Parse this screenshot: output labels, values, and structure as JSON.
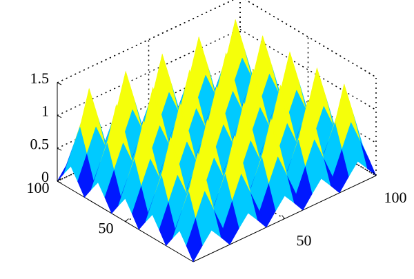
{
  "chart_data": {
    "type": "surface",
    "x": [
      0,
      5,
      10,
      15,
      20,
      25,
      30,
      35,
      40,
      45,
      50,
      55,
      60,
      65,
      70,
      75,
      80,
      85,
      90,
      95,
      100
    ],
    "y": [
      0,
      5,
      10,
      15,
      20,
      25,
      30,
      35,
      40,
      45,
      50,
      55,
      60,
      65,
      70,
      75,
      80,
      85,
      90,
      95,
      100
    ],
    "z": [
      [
        0,
        0.18,
        0.35,
        0.18,
        0,
        0.18,
        0.35,
        0.18,
        0,
        0.18,
        0.35,
        0.18,
        0,
        0.18,
        0.35,
        0.18,
        0,
        0.18,
        0.35,
        0.18,
        0
      ],
      [
        0.18,
        0.53,
        0.88,
        0.53,
        0.18,
        0.53,
        0.88,
        0.53,
        0.18,
        0.53,
        0.88,
        0.53,
        0.18,
        0.53,
        0.88,
        0.53,
        0.18,
        0.53,
        0.88,
        0.53,
        0.18
      ],
      [
        0.35,
        0.88,
        1.4,
        0.88,
        0.35,
        0.88,
        1.4,
        0.88,
        0.35,
        0.88,
        1.4,
        0.88,
        0.35,
        0.88,
        1.4,
        0.88,
        0.35,
        0.88,
        1.4,
        0.88,
        0.35
      ],
      [
        0.18,
        0.53,
        0.88,
        0.53,
        0.18,
        0.53,
        0.88,
        0.53,
        0.18,
        0.53,
        0.88,
        0.53,
        0.18,
        0.53,
        0.88,
        0.53,
        0.18,
        0.53,
        0.88,
        0.53,
        0.18
      ],
      [
        0,
        0.18,
        0.35,
        0.18,
        0,
        0.18,
        0.35,
        0.18,
        0,
        0.18,
        0.35,
        0.18,
        0,
        0.18,
        0.35,
        0.18,
        0,
        0.18,
        0.35,
        0.18,
        0
      ],
      [
        0.18,
        0.53,
        0.88,
        0.53,
        0.18,
        0.53,
        0.88,
        0.53,
        0.18,
        0.53,
        0.88,
        0.53,
        0.18,
        0.53,
        0.88,
        0.53,
        0.18,
        0.53,
        0.88,
        0.53,
        0.18
      ],
      [
        0.35,
        0.88,
        1.4,
        0.88,
        0.35,
        0.88,
        1.4,
        0.88,
        0.35,
        0.88,
        1.4,
        0.88,
        0.35,
        0.88,
        1.4,
        0.88,
        0.35,
        0.88,
        1.4,
        0.88,
        0.35
      ],
      [
        0.18,
        0.53,
        0.88,
        0.53,
        0.18,
        0.53,
        0.88,
        0.53,
        0.18,
        0.53,
        0.88,
        0.53,
        0.18,
        0.53,
        0.88,
        0.53,
        0.18,
        0.53,
        0.88,
        0.53,
        0.18
      ],
      [
        0,
        0.18,
        0.35,
        0.18,
        0,
        0.18,
        0.35,
        0.18,
        0,
        0.18,
        0.35,
        0.18,
        0,
        0.18,
        0.35,
        0.18,
        0,
        0.18,
        0.35,
        0.18,
        0
      ],
      [
        0.18,
        0.53,
        0.88,
        0.53,
        0.18,
        0.53,
        0.88,
        0.53,
        0.18,
        0.53,
        0.88,
        0.53,
        0.18,
        0.53,
        0.88,
        0.53,
        0.18,
        0.53,
        0.88,
        0.53,
        0.18
      ],
      [
        0.35,
        0.88,
        1.4,
        0.88,
        0.35,
        0.88,
        1.4,
        0.88,
        0.35,
        0.88,
        1.4,
        0.88,
        0.35,
        0.88,
        1.4,
        0.88,
        0.35,
        0.88,
        1.4,
        0.88,
        0.35
      ],
      [
        0.18,
        0.53,
        0.88,
        0.53,
        0.18,
        0.53,
        0.88,
        0.53,
        0.18,
        0.53,
        0.88,
        0.53,
        0.18,
        0.53,
        0.88,
        0.53,
        0.18,
        0.53,
        0.88,
        0.53,
        0.18
      ],
      [
        0,
        0.18,
        0.35,
        0.18,
        0,
        0.18,
        0.35,
        0.18,
        0,
        0.18,
        0.35,
        0.18,
        0,
        0.18,
        0.35,
        0.18,
        0,
        0.18,
        0.35,
        0.18,
        0
      ],
      [
        0.18,
        0.53,
        0.88,
        0.53,
        0.18,
        0.53,
        0.88,
        0.53,
        0.18,
        0.53,
        0.88,
        0.53,
        0.18,
        0.53,
        0.88,
        0.53,
        0.18,
        0.53,
        0.88,
        0.53,
        0.18
      ],
      [
        0.35,
        0.88,
        1.4,
        0.88,
        0.35,
        0.88,
        1.4,
        0.88,
        0.35,
        0.88,
        1.4,
        0.88,
        0.35,
        0.88,
        1.4,
        0.88,
        0.35,
        0.88,
        1.4,
        0.88,
        0.35
      ],
      [
        0.18,
        0.53,
        0.88,
        0.53,
        0.18,
        0.53,
        0.88,
        0.53,
        0.18,
        0.53,
        0.88,
        0.53,
        0.18,
        0.53,
        0.88,
        0.53,
        0.18,
        0.53,
        0.88,
        0.53,
        0.18
      ],
      [
        0,
        0.18,
        0.35,
        0.18,
        0,
        0.18,
        0.35,
        0.18,
        0,
        0.18,
        0.35,
        0.18,
        0,
        0.18,
        0.35,
        0.18,
        0,
        0.18,
        0.35,
        0.18,
        0
      ],
      [
        0.18,
        0.53,
        0.88,
        0.53,
        0.18,
        0.53,
        0.88,
        0.53,
        0.18,
        0.53,
        0.88,
        0.53,
        0.18,
        0.53,
        0.88,
        0.53,
        0.18,
        0.53,
        0.88,
        0.53,
        0.18
      ],
      [
        0.35,
        0.88,
        1.4,
        0.88,
        0.35,
        0.88,
        1.4,
        0.88,
        0.35,
        0.88,
        1.4,
        0.88,
        0.35,
        0.88,
        1.4,
        0.88,
        0.35,
        0.88,
        1.4,
        0.88,
        0.35
      ],
      [
        0.18,
        0.53,
        0.88,
        0.53,
        0.18,
        0.53,
        0.88,
        0.53,
        0.18,
        0.53,
        0.88,
        0.53,
        0.18,
        0.53,
        0.88,
        0.53,
        0.18,
        0.53,
        0.88,
        0.53,
        0.18
      ],
      [
        0,
        0.18,
        0.35,
        0.18,
        0,
        0.18,
        0.35,
        0.18,
        0,
        0.18,
        0.35,
        0.18,
        0,
        0.18,
        0.35,
        0.18,
        0,
        0.18,
        0.35,
        0.18,
        0
      ]
    ],
    "xlim": [
      0,
      100
    ],
    "ylim": [
      0,
      100
    ],
    "zlim": [
      0,
      1.5
    ],
    "xticks": [
      50,
      100
    ],
    "yticks": [
      50,
      100
    ],
    "zticks": [
      0,
      0.5,
      1,
      1.5
    ],
    "colormap": "jet",
    "grid": true
  }
}
